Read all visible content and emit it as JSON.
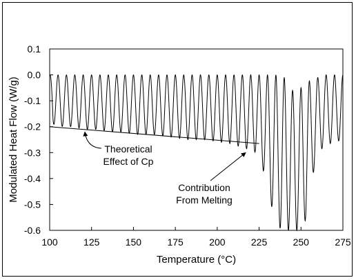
{
  "chart_data": {
    "type": "line",
    "xlabel": "Temperature (°C)",
    "ylabel": "Modulated  Heat Flow (W/g)",
    "xlim": [
      100,
      275
    ],
    "ylim": [
      -0.6,
      0.1
    ],
    "x_ticks": [
      "100",
      "125",
      "150",
      "175",
      "200",
      "225",
      "250",
      "275"
    ],
    "y_ticks": [
      "0.1",
      "0.0",
      "-0.1",
      "-0.2",
      "-0.3",
      "-0.4",
      "-0.5",
      "-0.6"
    ],
    "grid": false,
    "legend": "none",
    "series": [
      {
        "style": "oscillating line",
        "x": [
          100,
          102,
          108,
          112,
          115,
          120,
          125,
          130,
          135,
          140,
          145,
          150,
          155,
          160,
          165,
          170,
          175,
          180,
          185,
          190,
          195,
          200,
          205,
          210,
          215,
          220,
          223,
          226,
          229,
          232,
          235,
          238,
          240,
          242,
          245,
          248,
          250,
          253,
          256,
          260,
          265,
          270,
          275
        ],
        "upper": [
          0.0,
          0.0,
          0.0,
          0.0,
          0.0,
          0.0,
          0.0,
          0.0,
          0.0,
          0.0,
          0.0,
          0.0,
          0.0,
          0.0,
          0.0,
          0.0,
          0.0,
          0.0,
          0.0,
          0.0,
          0.0,
          0.0,
          0.0,
          0.0,
          0.0,
          0.0,
          0.0,
          0.0,
          0.0,
          0.0,
          0.0,
          0.0,
          -0.01,
          -0.03,
          -0.06,
          -0.07,
          -0.05,
          -0.03,
          -0.02,
          -0.01,
          0.0,
          0.0,
          0.0
        ],
        "lower": [
          -0.01,
          -0.19,
          -0.2,
          -0.2,
          -0.2,
          -0.21,
          -0.21,
          -0.21,
          -0.22,
          -0.22,
          -0.22,
          -0.23,
          -0.23,
          -0.23,
          -0.23,
          -0.24,
          -0.24,
          -0.25,
          -0.25,
          -0.25,
          -0.25,
          -0.26,
          -0.26,
          -0.27,
          -0.28,
          -0.29,
          -0.3,
          -0.34,
          -0.4,
          -0.5,
          -0.55,
          -0.6,
          -0.6,
          -0.6,
          -0.6,
          -0.6,
          -0.58,
          -0.56,
          -0.42,
          -0.3,
          -0.27,
          -0.26,
          -0.25
        ]
      },
      {
        "style": "straight reference line",
        "x": [
          100,
          225
        ],
        "y": [
          -0.2,
          -0.265
        ]
      }
    ],
    "annotations": [
      {
        "text_lines": [
          "Theoretical",
          "Effect of Cp"
        ],
        "points_to": [
          121,
          -0.22
        ]
      },
      {
        "text_lines": [
          "Contribution",
          "From Melting"
        ],
        "points_to": [
          217,
          -0.3
        ]
      }
    ]
  }
}
